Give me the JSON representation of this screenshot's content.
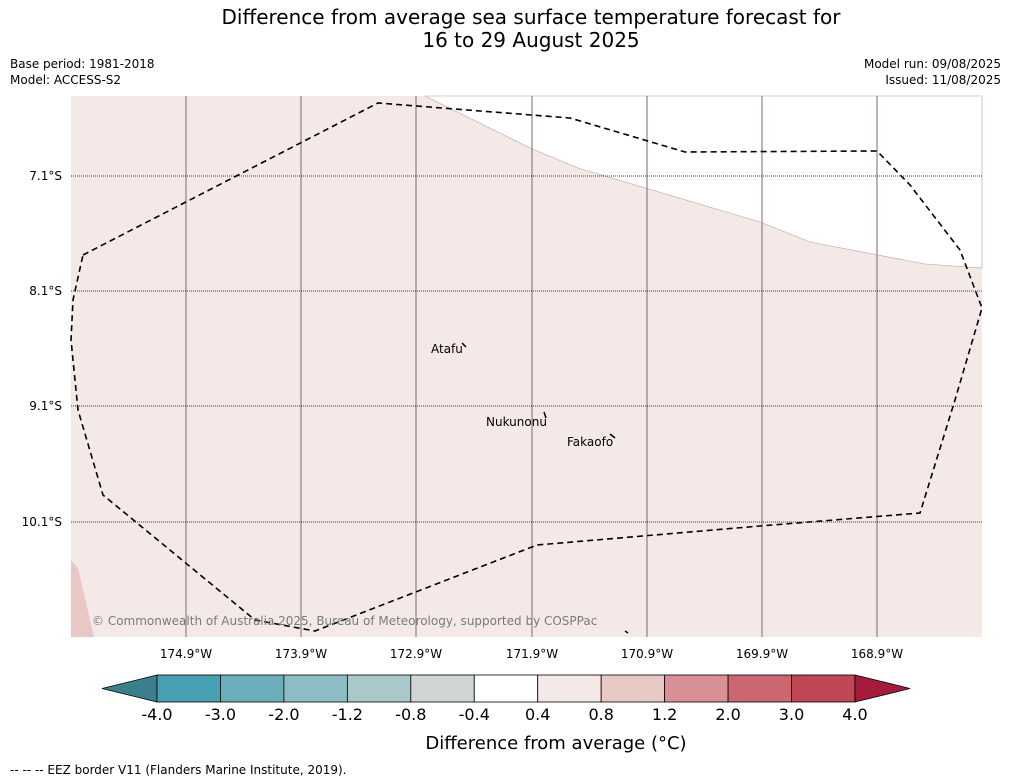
{
  "title": {
    "line1": "Difference from average sea surface temperature forecast for",
    "line2": "16 to 29 August 2025"
  },
  "meta": {
    "base_period": "Base period: 1981-2018",
    "model": "Model: ACCESS-S2",
    "model_run": "Model run: 09/08/2025",
    "issued": "Issued: 11/08/2025"
  },
  "map": {
    "latitudes": [
      "7.1°S",
      "8.1°S",
      "9.1°S",
      "10.1°S"
    ],
    "longitudes": [
      "174.9°W",
      "173.9°W",
      "172.9°W",
      "171.9°W",
      "170.9°W",
      "169.9°W",
      "168.9°W"
    ],
    "islands": [
      "Atafu",
      "Nukunonu",
      "Fakaofo"
    ],
    "fill_colors": {
      "main": "#f5e9e8",
      "southwest": "#e8c8c4",
      "no_data": "#ffffff"
    },
    "copyright": "© Commonwealth of Australia 2025, Bureau of Meteorology, supported by COSPPac"
  },
  "colorbar": {
    "ticks": [
      "-4.0",
      "-3.0",
      "-2.0",
      "-1.2",
      "-0.8",
      "-0.4",
      "0.4",
      "0.8",
      "1.2",
      "2.0",
      "3.0",
      "4.0"
    ],
    "colors": [
      "#3b7f8c",
      "#47a1b2",
      "#6badbb",
      "#8ebcc4",
      "#aac7ca",
      "#d1d5d6",
      "#ffffff",
      "#f5e9e8",
      "#e8c8c4",
      "#d88f95",
      "#cc6670",
      "#be4655",
      "#a51c3a"
    ],
    "label": "Difference from average (°C)"
  },
  "footer": "--  --  -- EEZ border V11 (Flanders Marine Institute, 2019)."
}
